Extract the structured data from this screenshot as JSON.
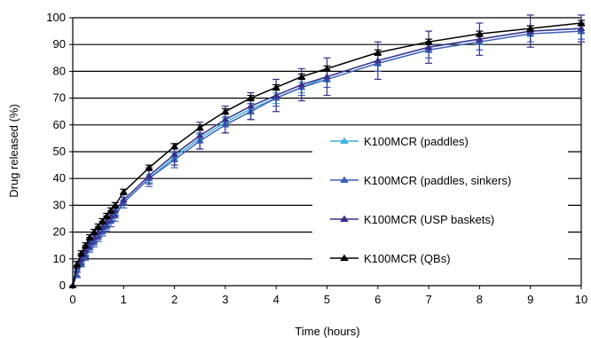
{
  "chart_data": {
    "type": "line",
    "xlabel": "Time (hours)",
    "ylabel": "Drug released (%)",
    "xlim": [
      0,
      10
    ],
    "ylim": [
      0,
      100
    ],
    "xticks": [
      0,
      1,
      2,
      3,
      4,
      5,
      6,
      7,
      8,
      9,
      10
    ],
    "yticks": [
      0,
      10,
      20,
      30,
      40,
      50,
      60,
      70,
      80,
      90,
      100
    ],
    "grid": "horizontal",
    "legend_position": "right-center",
    "x": [
      0,
      0.083,
      0.167,
      0.25,
      0.333,
      0.417,
      0.5,
      0.583,
      0.667,
      0.75,
      0.833,
      1,
      1.5,
      2,
      2.5,
      3,
      3.5,
      4,
      4.5,
      5,
      6,
      7,
      8,
      9,
      10
    ],
    "series": [
      {
        "name": "K100MCR (paddles)",
        "color": "#3cb4d8",
        "marker": "triangle",
        "values": [
          0,
          6,
          9,
          12,
          15,
          17,
          19,
          21,
          23,
          25,
          27,
          31,
          40,
          48,
          55,
          61,
          66,
          70,
          74,
          78,
          84,
          89,
          92,
          95,
          96
        ],
        "errors": [
          0,
          1,
          1,
          1,
          1,
          1,
          1,
          1,
          1,
          1,
          1,
          1,
          1.5,
          1.5,
          1.5,
          1.5,
          2,
          2,
          2,
          2,
          2,
          2,
          2,
          2,
          2
        ]
      },
      {
        "name": "K100MCR (paddles, sinkers)",
        "color": "#3a5fb8",
        "marker": "triangle",
        "values": [
          0,
          4,
          8,
          11,
          14,
          16,
          18,
          20,
          22,
          24,
          26,
          31,
          40,
          47,
          54,
          60,
          65,
          70,
          74,
          77,
          83,
          88,
          91,
          94,
          95
        ],
        "errors": [
          0,
          1,
          1,
          1.5,
          1.5,
          1.5,
          1.5,
          1.5,
          1.5,
          2,
          2,
          2,
          3,
          3,
          3,
          3,
          3,
          3,
          3,
          3,
          3,
          3,
          3,
          3,
          3
        ]
      },
      {
        "name": "K100MCR (USP baskets)",
        "color": "#3a2f8c",
        "marker": "triangle",
        "values": [
          0,
          7,
          10,
          13,
          16,
          18,
          20,
          22,
          24,
          26,
          28,
          32,
          41,
          49,
          56,
          62,
          67,
          71,
          75,
          78,
          84,
          89,
          92,
          95,
          96
        ],
        "errors": [
          0,
          2,
          2,
          2,
          2,
          2,
          2,
          2,
          2,
          2,
          2,
          2,
          3,
          4,
          5,
          5,
          5,
          6,
          6,
          7,
          7,
          6,
          6,
          6,
          5
        ]
      },
      {
        "name": "K100MCR (QBs)",
        "color": "#000000",
        "marker": "triangle",
        "values": [
          0,
          8,
          12,
          15,
          18,
          20,
          22,
          24,
          26,
          28,
          30,
          35,
          44,
          52,
          59,
          65,
          70,
          74,
          78,
          81,
          87,
          91,
          94,
          96,
          98
        ],
        "errors": [
          0,
          1,
          1,
          1,
          1,
          1,
          1,
          1,
          1,
          1,
          1,
          1,
          1,
          1,
          1,
          1,
          1,
          1,
          1,
          1,
          1,
          1,
          1,
          1,
          1
        ]
      }
    ]
  }
}
